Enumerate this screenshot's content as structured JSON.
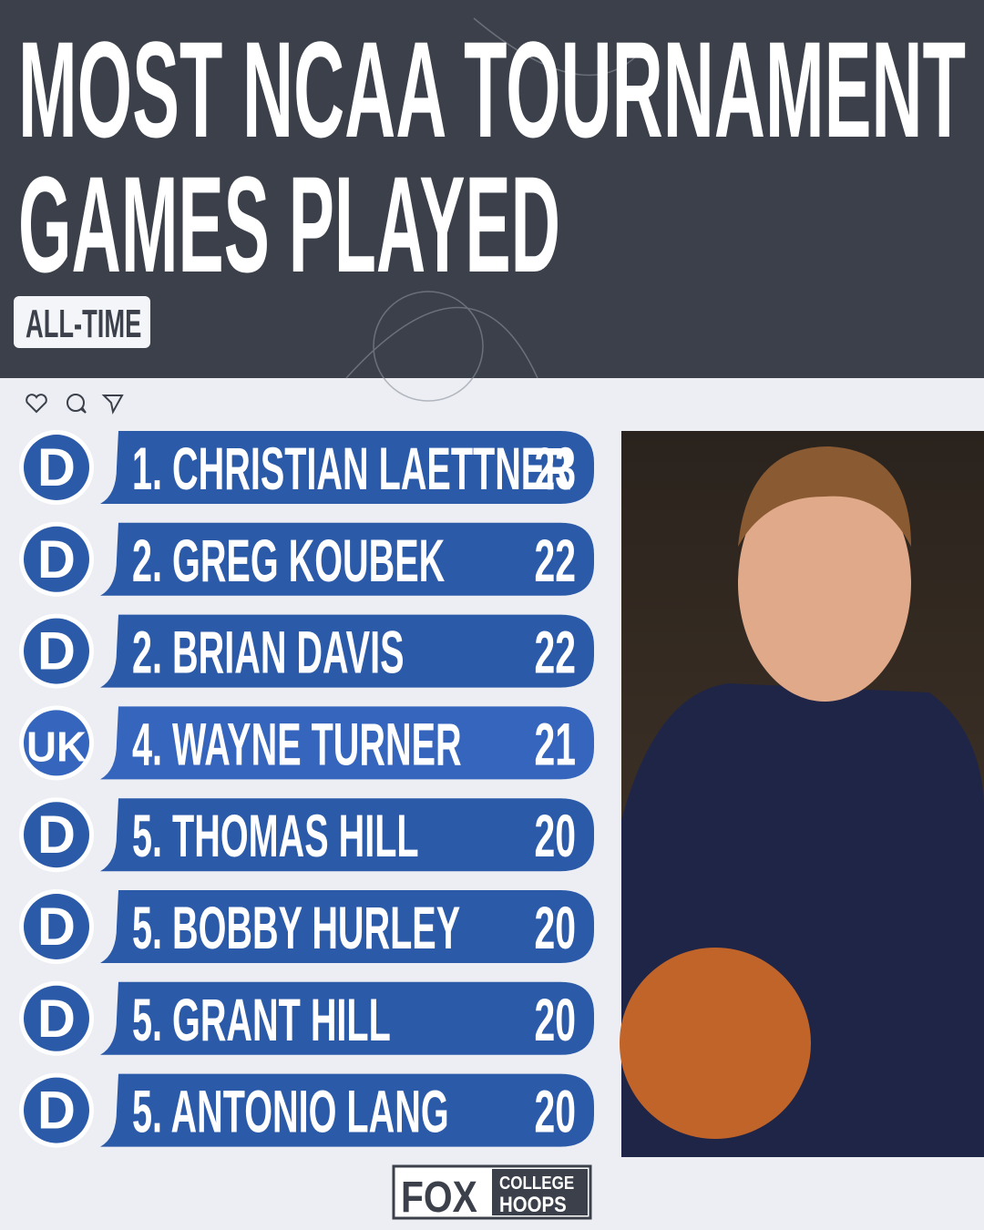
{
  "header": {
    "title_lines": [
      "MOST NCAA TOURNAMENT",
      "GAMES PLAYED"
    ],
    "badge": "ALL-TIME"
  },
  "list": {
    "rows": [
      {
        "logo": "D",
        "label": "1. CHRISTIAN LAETTNER",
        "games": 23
      },
      {
        "logo": "D",
        "label": "2. GREG KOUBEK",
        "games": 22
      },
      {
        "logo": "D",
        "label": "2. BRIAN DAVIS",
        "games": 22
      },
      {
        "logo": "UK",
        "label": "4. WAYNE TURNER",
        "games": 21
      },
      {
        "logo": "D",
        "label": "5. THOMAS HILL",
        "games": 20
      },
      {
        "logo": "D",
        "label": "5. BOBBY HURLEY",
        "games": 20
      },
      {
        "logo": "D",
        "label": "5. GRANT HILL",
        "games": 20
      },
      {
        "logo": "D",
        "label": "5. ANTONIO LANG",
        "games": 20
      }
    ]
  },
  "footer": {
    "brand": "FOX",
    "line1": "COLLEGE",
    "line2": "HOOPS"
  }
}
